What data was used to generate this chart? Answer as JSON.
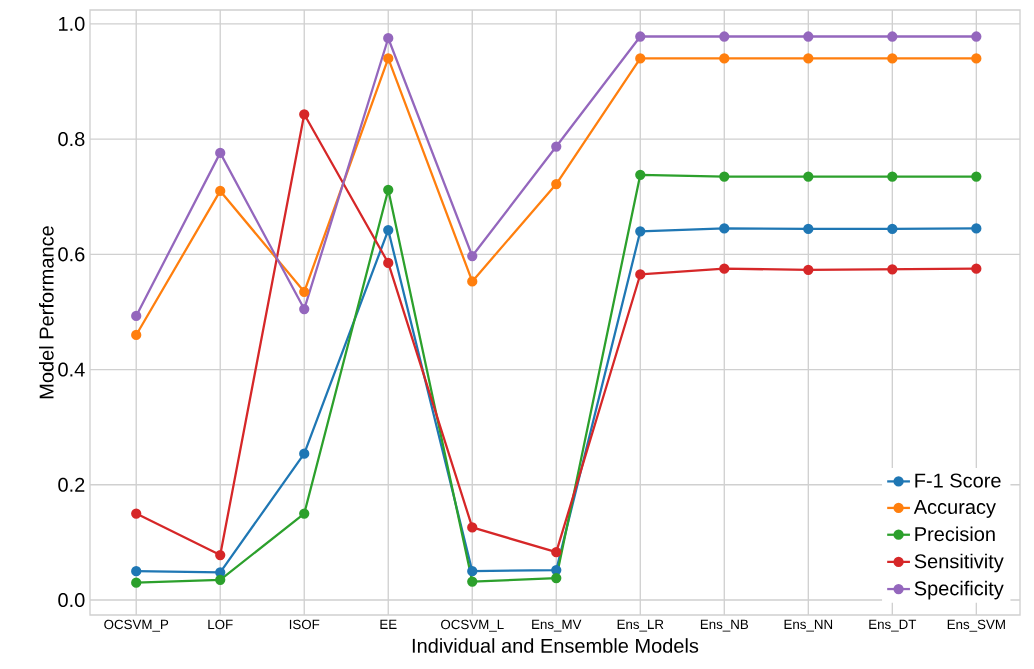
{
  "chart_data": {
    "type": "line",
    "xlabel": "Individual and Ensemble Models",
    "ylabel": "Model Performance",
    "categories": [
      "OCSVM_P",
      "LOF",
      "ISOF",
      "EE",
      "OCSVM_L",
      "Ens_MV",
      "Ens_LR",
      "Ens_NB",
      "Ens_NN",
      "Ens_DT",
      "Ens_SVM"
    ],
    "series": [
      {
        "name": "F-1 Score",
        "color": "#1f77b4",
        "values": [
          0.05,
          0.048,
          0.254,
          0.642,
          0.05,
          0.052,
          0.64,
          0.645,
          0.644,
          0.644,
          0.645
        ]
      },
      {
        "name": "Accuracy",
        "color": "#ff7f0e",
        "values": [
          0.46,
          0.71,
          0.535,
          0.94,
          0.553,
          0.722,
          0.94,
          0.94,
          0.94,
          0.94,
          0.94
        ]
      },
      {
        "name": "Precision",
        "color": "#2ca02c",
        "values": [
          0.03,
          0.035,
          0.15,
          0.712,
          0.032,
          0.038,
          0.738,
          0.735,
          0.735,
          0.735,
          0.735
        ]
      },
      {
        "name": "Sensitivity",
        "color": "#d62728",
        "values": [
          0.15,
          0.078,
          0.843,
          0.585,
          0.126,
          0.083,
          0.565,
          0.575,
          0.573,
          0.574,
          0.575
        ]
      },
      {
        "name": "Specificity",
        "color": "#9467bd",
        "values": [
          0.493,
          0.776,
          0.505,
          0.975,
          0.597,
          0.787,
          0.978,
          0.978,
          0.978,
          0.978,
          0.978
        ]
      }
    ],
    "ylim": [
      -0.026,
      1.024
    ],
    "yticks": [
      {
        "value": 0,
        "label": "0.0"
      },
      {
        "value": 0.2,
        "label": "0.2"
      },
      {
        "value": 0.4,
        "label": "0.4"
      },
      {
        "value": 0.6,
        "label": "0.6"
      },
      {
        "value": 0.8,
        "label": "0.8"
      },
      {
        "value": 1,
        "label": "1.0"
      }
    ],
    "grid": true,
    "legend": "bottom right",
    "marker": "circle",
    "line_style": "solid"
  }
}
